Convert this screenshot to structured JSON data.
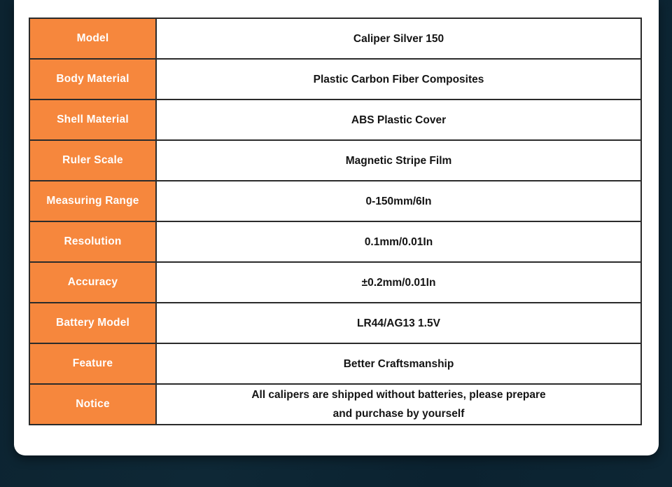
{
  "page": {
    "background_color": "#0d2634",
    "card_color": "#ffffff"
  },
  "table": {
    "accent_color": "#f6873d",
    "border_color": "#2b2b2b",
    "label_text_color": "#ffffff",
    "value_text_color": "#141414",
    "rows": [
      {
        "label": "Model",
        "value": "Caliper Silver 150"
      },
      {
        "label": "Body Material",
        "value": "Plastic Carbon Fiber Composites"
      },
      {
        "label": "Shell Material",
        "value": "ABS Plastic Cover"
      },
      {
        "label": "Ruler Scale",
        "value": "Magnetic Stripe Film"
      },
      {
        "label": "Measuring Range",
        "value": "0-150mm/6In"
      },
      {
        "label": "Resolution",
        "value": "0.1mm/0.01In"
      },
      {
        "label": "Accuracy",
        "value": "±0.2mm/0.01In"
      },
      {
        "label": "Battery Model",
        "value": "LR44/AG13 1.5V"
      },
      {
        "label": "Feature",
        "value": "Better Craftsmanship"
      },
      {
        "label": "Notice",
        "value": "All calipers are shipped without batteries, please prepare and purchase by yourself",
        "value_lines": [
          "All calipers are shipped without batteries, please prepare",
          "and purchase by yourself"
        ]
      }
    ]
  }
}
